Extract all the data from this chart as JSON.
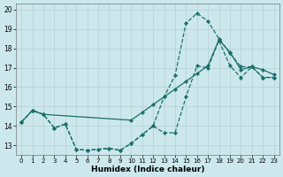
{
  "xlabel": "Humidex (Indice chaleur)",
  "background_color": "#cce8ed",
  "grid_color": "#b8d4d8",
  "line_color": "#1a6e6a",
  "xlim": [
    -0.5,
    23.5
  ],
  "ylim": [
    12.5,
    20.3
  ],
  "xticks": [
    0,
    1,
    2,
    3,
    4,
    5,
    6,
    7,
    8,
    9,
    10,
    11,
    12,
    13,
    14,
    15,
    16,
    17,
    18,
    19,
    20,
    21,
    22,
    23
  ],
  "yticks": [
    13,
    14,
    15,
    16,
    17,
    18,
    19,
    20
  ],
  "line1_x": [
    0,
    1,
    2,
    3,
    4,
    5,
    6,
    7,
    8,
    9,
    10,
    11,
    12,
    13,
    14,
    15,
    16,
    17,
    18,
    19,
    20,
    21,
    22,
    23
  ],
  "line1_y": [
    14.2,
    14.8,
    14.6,
    13.9,
    14.1,
    12.8,
    12.75,
    12.8,
    12.85,
    12.75,
    13.1,
    13.55,
    14.0,
    13.65,
    13.65,
    15.5,
    17.1,
    17.0,
    18.4,
    17.1,
    16.5,
    17.05,
    16.5,
    16.5
  ],
  "line2_x": [
    0,
    1,
    2,
    3,
    4,
    5,
    6,
    7,
    8,
    9,
    10,
    11,
    12,
    13,
    14,
    15,
    16,
    17,
    18,
    19,
    20,
    21,
    22,
    23
  ],
  "line2_y": [
    14.2,
    14.8,
    14.6,
    13.9,
    14.1,
    12.8,
    12.75,
    12.8,
    12.85,
    12.75,
    13.1,
    13.55,
    14.0,
    15.5,
    16.6,
    19.3,
    19.8,
    19.4,
    18.5,
    17.75,
    17.05,
    17.05,
    16.5,
    16.5
  ],
  "line3_x": [
    0,
    1,
    2,
    10,
    11,
    12,
    13,
    14,
    15,
    16,
    17,
    18,
    19,
    20,
    21,
    22,
    23
  ],
  "line3_y": [
    14.2,
    14.8,
    14.6,
    14.3,
    14.7,
    15.1,
    15.5,
    15.9,
    16.3,
    16.7,
    17.1,
    18.45,
    17.8,
    16.9,
    17.05,
    16.9,
    16.65
  ]
}
